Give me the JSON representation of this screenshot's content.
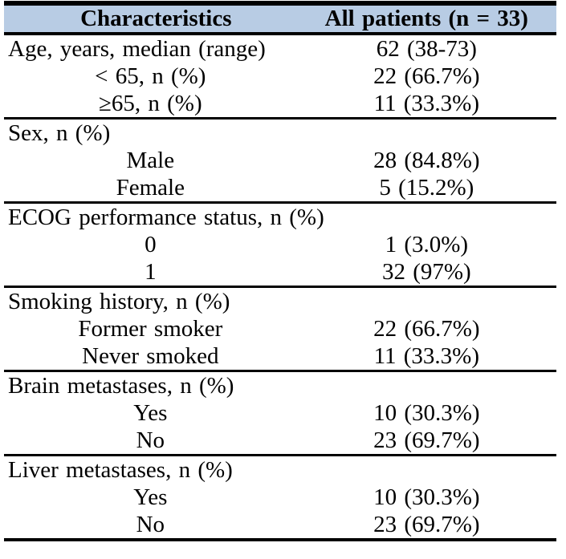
{
  "table": {
    "title_semantic": "Patient baseline characteristics table",
    "header": {
      "col1": "Characteristics",
      "col2": "All patients (n = 33)"
    },
    "header_bg_color": "#b8cce4",
    "rule_color": "#000000",
    "sections": [
      {
        "rows": [
          {
            "label": "Age, years, median (range)",
            "value": "62 (38-73)"
          },
          {
            "label": "< 65, n (%)",
            "value": "22 (66.7%)"
          },
          {
            "label": "≥65, n (%)",
            "value": "11 (33.3%)"
          }
        ]
      },
      {
        "rows": [
          {
            "label": "Sex, n (%)",
            "value": ""
          },
          {
            "label": "Male",
            "value": "28 (84.8%)"
          },
          {
            "label": "Female",
            "value": "5 (15.2%)"
          }
        ]
      },
      {
        "rows": [
          {
            "label": "ECOG performance status, n (%)",
            "value": ""
          },
          {
            "label": "0",
            "value": "1 (3.0%)"
          },
          {
            "label": "1",
            "value": "32 (97%)"
          }
        ]
      },
      {
        "rows": [
          {
            "label": "Smoking history, n (%)",
            "value": ""
          },
          {
            "label": "Former smoker",
            "value": "22 (66.7%)"
          },
          {
            "label": "Never smoked",
            "value": "11 (33.3%)"
          }
        ]
      },
      {
        "rows": [
          {
            "label": "Brain metastases, n (%)",
            "value": ""
          },
          {
            "label": "Yes",
            "value": "10 (30.3%)"
          },
          {
            "label": "No",
            "value": "23 (69.7%)"
          }
        ]
      },
      {
        "rows": [
          {
            "label": "Liver metastases, n (%)",
            "value": ""
          },
          {
            "label": "Yes",
            "value": "10 (30.3%)"
          },
          {
            "label": "No",
            "value": "23 (69.7%)"
          }
        ]
      }
    ]
  }
}
